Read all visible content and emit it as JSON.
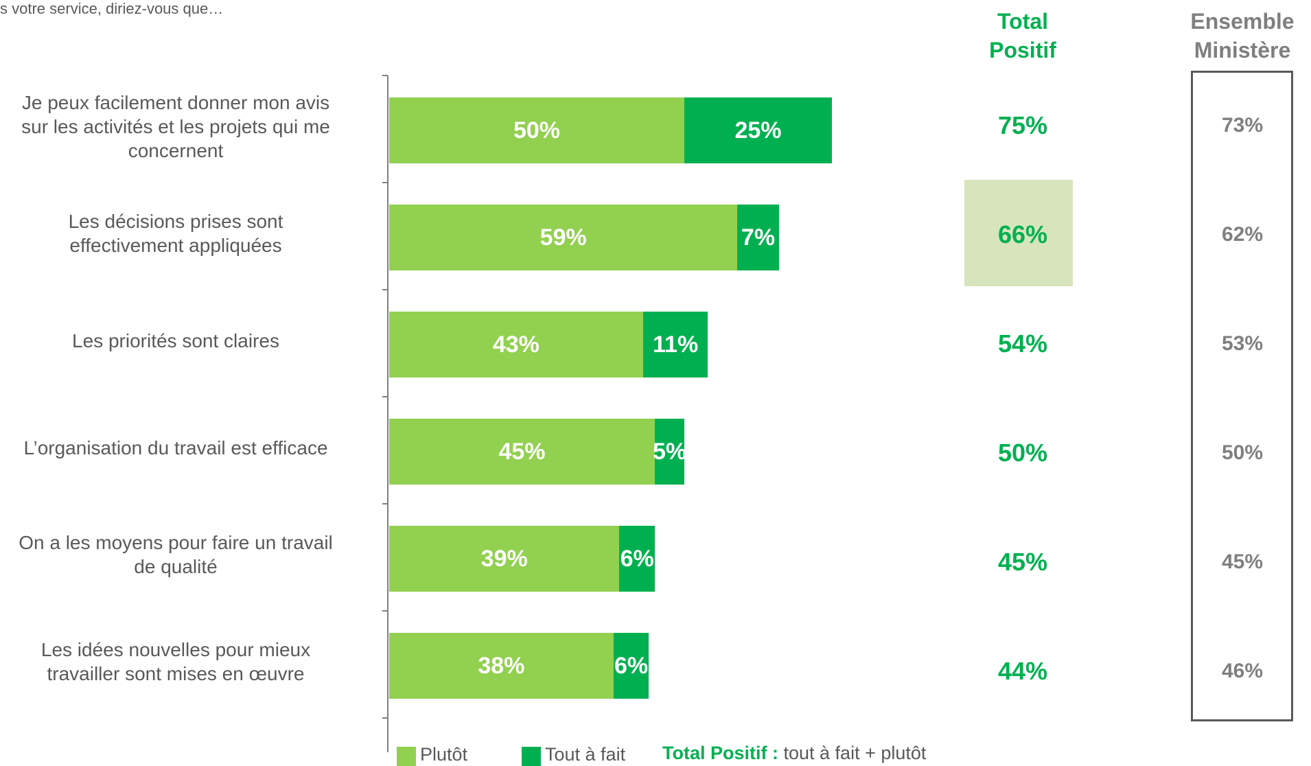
{
  "question": "s votre service, diriez-vous que…",
  "headers": {
    "total_positif_line1": "Total",
    "total_positif_line2": "Positif",
    "ensemble_line1": "Ensemble",
    "ensemble_line2": "Ministère"
  },
  "chart_data": {
    "type": "bar",
    "orientation": "horizontal",
    "stacked": true,
    "categories": [
      "Je peux facilement donner mon avis sur les activités et les projets qui me concernent",
      "Les décisions prises sont effectivement appliquées",
      "Les priorités sont claires",
      "L’organisation du travail est efficace",
      "On a les moyens pour faire un travail de qualité",
      "Les idées nouvelles pour mieux travailler sont mises en œuvre"
    ],
    "category_lines": [
      [
        "Je peux facilement donner mon avis",
        "sur les activités et les projets qui me",
        "concernent"
      ],
      [
        "Les décisions prises sont",
        "effectivement appliquées"
      ],
      [
        "Les priorités sont claires"
      ],
      [
        "L’organisation du travail  est efficace"
      ],
      [
        "On a les moyens pour faire un travail",
        "de qualité"
      ],
      [
        "Les idées nouvelles pour mieux",
        "travailler sont mises en œuvre"
      ]
    ],
    "series": [
      {
        "name": "Plutôt",
        "color": "#92d050",
        "values": [
          50,
          59,
          43,
          45,
          39,
          38
        ],
        "labels": [
          "50%",
          "59%",
          "43%",
          "45%",
          "39%",
          "38%"
        ]
      },
      {
        "name": "Tout à fait",
        "color": "#00b050",
        "values": [
          25,
          7,
          11,
          5,
          6,
          6
        ],
        "labels": [
          "25%",
          "7%",
          "11%",
          "5%",
          "6%",
          "6%"
        ]
      }
    ],
    "total_positif": [
      "75%",
      "66%",
      "54%",
      "50%",
      "45%",
      "44%"
    ],
    "highlighted_total_index": 1,
    "ensemble_ministere": [
      "73%",
      "62%",
      "53%",
      "50%",
      "45%",
      "46%"
    ],
    "xlim": [
      0,
      100
    ],
    "grid": false,
    "legend_position": "bottom"
  },
  "legend": {
    "plutot": "Plutôt",
    "tout_a_fait": "Tout à fait"
  },
  "note": {
    "bold": "Total Positif :",
    "text": " tout à fait + plutôt"
  },
  "colors": {
    "plutot": "#92d050",
    "tout_a_fait": "#00b050",
    "total_positif": "#00b050",
    "highlight": "#d8e4bc",
    "ensemble": "#7f7f7f"
  }
}
